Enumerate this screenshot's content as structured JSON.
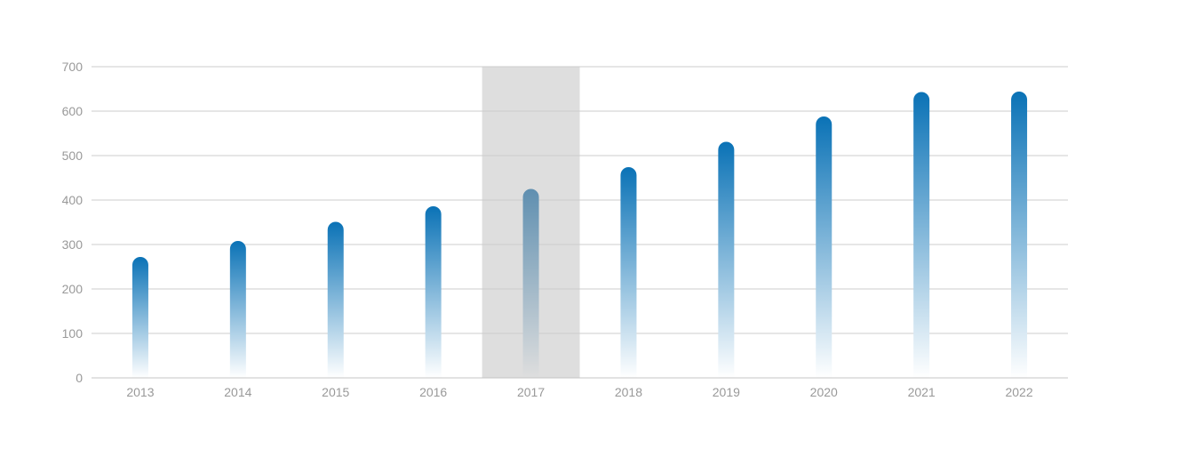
{
  "chart_data": {
    "type": "bar",
    "title": "",
    "xlabel": "",
    "ylabel": "",
    "categories": [
      "2013",
      "2014",
      "2015",
      "2016",
      "2017",
      "2018",
      "2019",
      "2020",
      "2021",
      "2022"
    ],
    "values": [
      272,
      308,
      351,
      386,
      425,
      474,
      531,
      588,
      643,
      644
    ],
    "ylim": [
      0,
      700
    ],
    "yticks": [
      "0",
      "100",
      "200",
      "300",
      "400",
      "500",
      "600",
      "700"
    ],
    "grid": true,
    "legend": "none",
    "highlighted_category": "2017",
    "colors": {
      "bar_top": "#0a72b6",
      "bar_bottom": "#ffffff",
      "highlight_top": "#5f8fb0",
      "highlight_band": "#dedede",
      "grid": "#cccccc",
      "axis": "#c4c4c4",
      "tick_label": "#999999"
    }
  }
}
